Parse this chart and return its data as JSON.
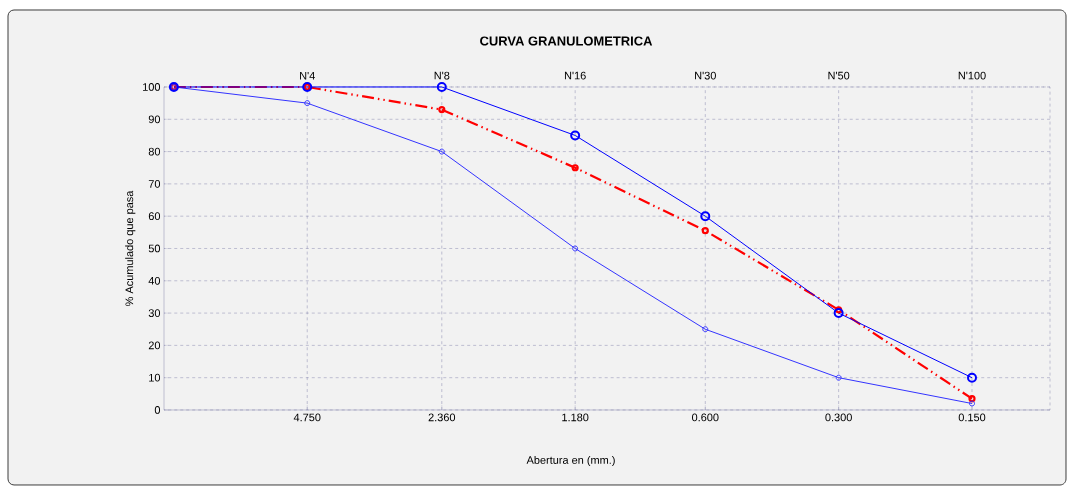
{
  "chart_data": {
    "type": "line",
    "title": "CURVA GRANULOMETRICA",
    "xlabel": "Abertura en (mm.)",
    "ylabel": "% Acumulado que pasa",
    "x": [
      9.5,
      4.75,
      2.36,
      1.18,
      0.6,
      0.3,
      0.15
    ],
    "series": [
      {
        "color": "#0000ff",
        "values": [
          100,
          100,
          100,
          85,
          60,
          30,
          10
        ]
      },
      {
        "color": "#3333ff",
        "values": [
          100,
          95,
          80,
          50,
          25,
          10,
          2
        ]
      },
      {
        "color": "#ff0000",
        "values": [
          100,
          100,
          93,
          75,
          55.5,
          31,
          3.5
        ],
        "line_style": "dashed"
      }
    ],
    "log": "x",
    "xlim": [
      10,
      0.1
    ],
    "ylim": [
      0,
      100
    ],
    "xticks": [
      {
        "value": 4.75,
        "label": "4.750"
      },
      {
        "value": 2.36,
        "label": "2.360"
      },
      {
        "value": 1.18,
        "label": "1.180"
      },
      {
        "value": 0.6,
        "label": "0.600"
      },
      {
        "value": 0.3,
        "label": "0.300"
      },
      {
        "value": 0.15,
        "label": "0.150"
      }
    ],
    "annotations": [
      "N'4",
      "N'8",
      "N'16",
      "N'30",
      "N'50",
      "N'100"
    ],
    "yticks": [
      0,
      10,
      20,
      30,
      40,
      50,
      60,
      70,
      80,
      90,
      100
    ],
    "grid": true,
    "marker": "circle"
  }
}
